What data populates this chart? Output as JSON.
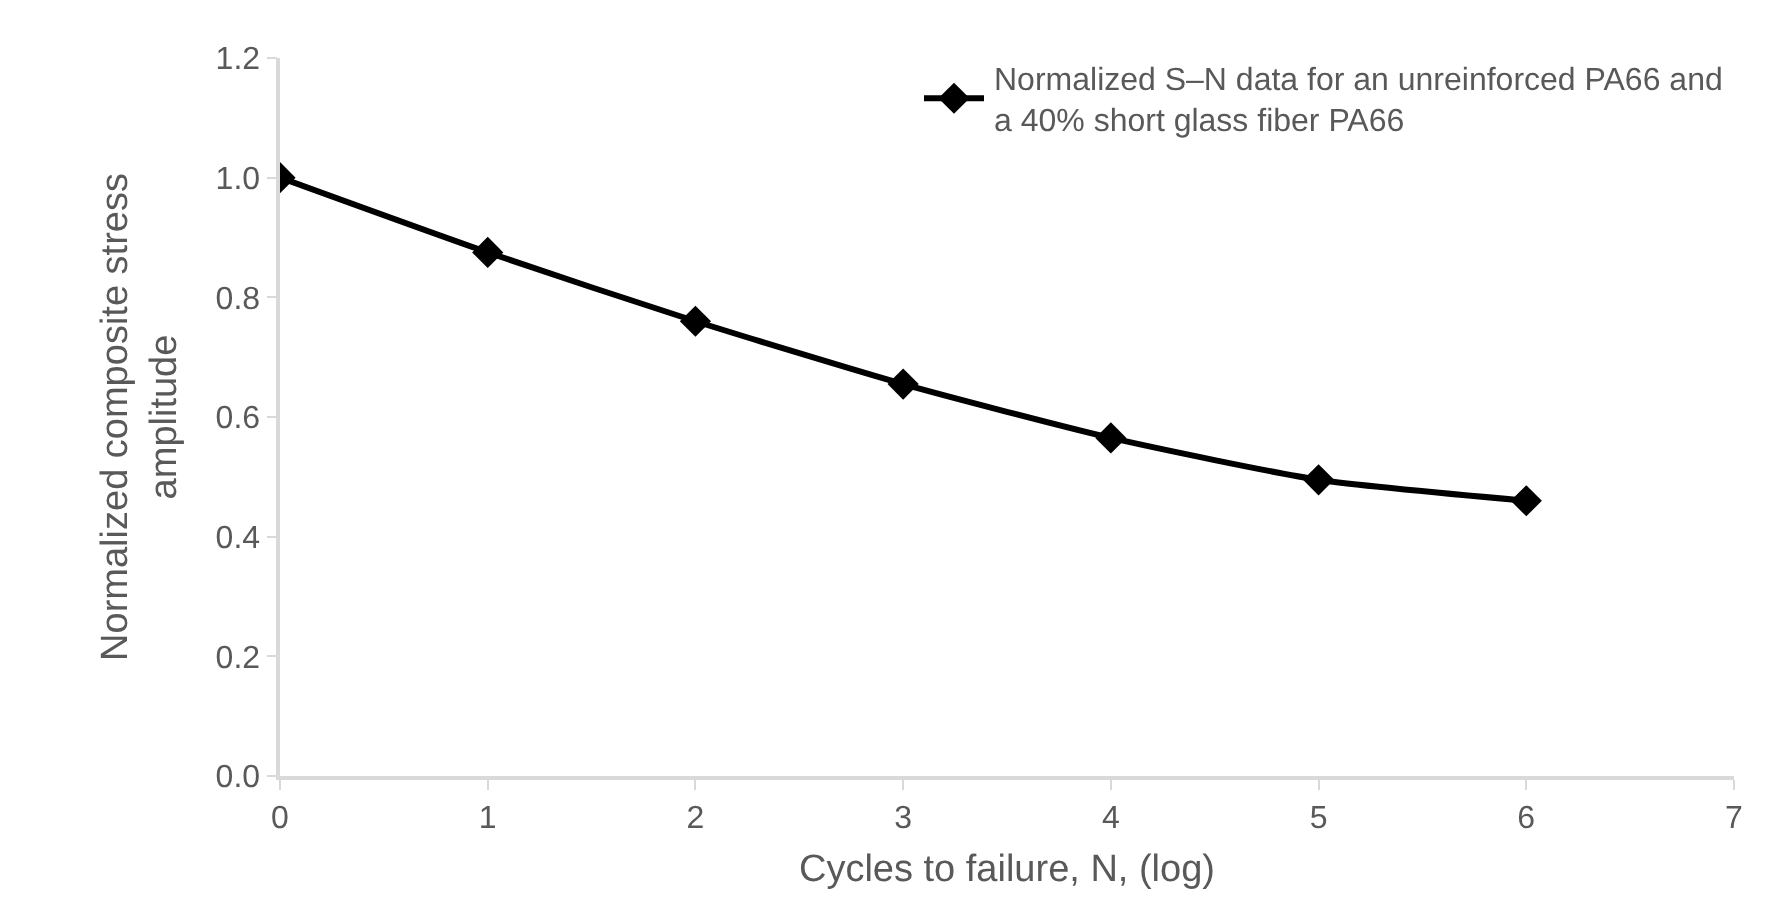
{
  "chart_data": {
    "type": "line",
    "xlabel": "Cycles to failure, N, (log)",
    "ylabel": "Normalized composite stress amplitude",
    "x": [
      0,
      1,
      2,
      3,
      4,
      5,
      6
    ],
    "series": [
      {
        "name": "Normalized S–N data for an unreinforced PA66 and a 40% short glass fiber PA66",
        "color": "#000000",
        "values": [
          1.0,
          0.875,
          0.76,
          0.655,
          0.565,
          0.495,
          0.46
        ]
      }
    ],
    "xlim": [
      0,
      7
    ],
    "xticks": [
      0,
      1,
      2,
      3,
      4,
      5,
      6,
      7
    ],
    "ylim": [
      0,
      1.2
    ],
    "yticks": [
      {
        "value": 0,
        "label": "0.0"
      },
      0.2,
      0.4,
      0.6,
      0.8,
      {
        "value": 1,
        "label": "1.0"
      },
      1.2
    ],
    "grid": false,
    "legend": "top right",
    "marker": "diamond",
    "line_style": "solid"
  }
}
